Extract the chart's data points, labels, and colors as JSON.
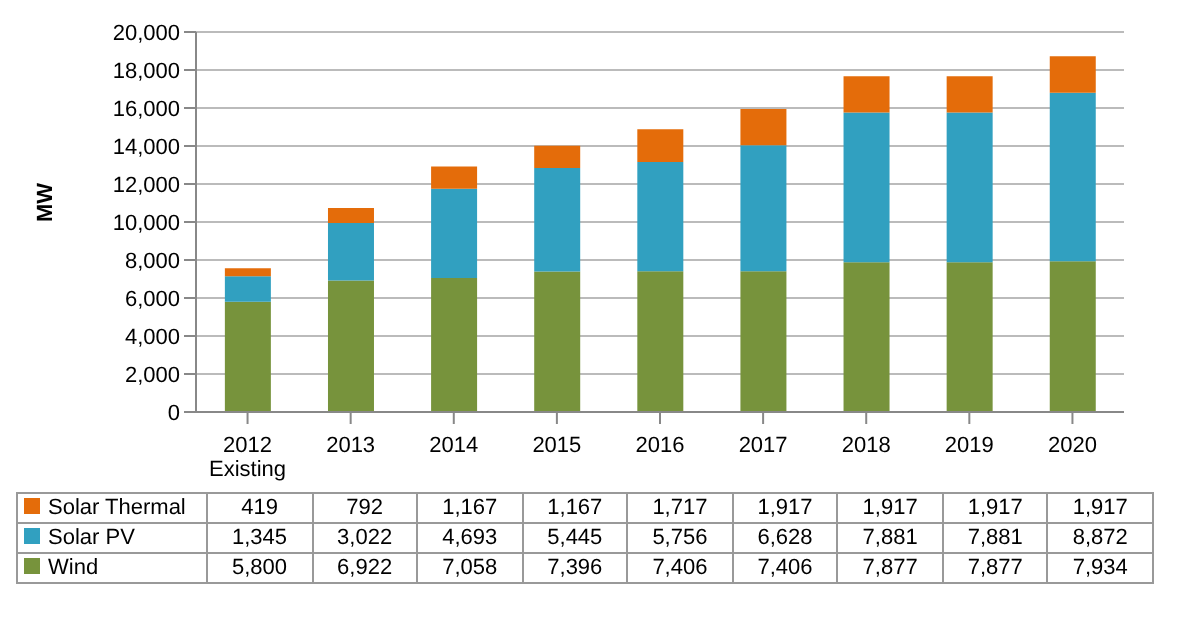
{
  "chart_data": {
    "type": "bar",
    "stacked": true,
    "ylabel": "MW",
    "categories": [
      "2012 Existing",
      "2013",
      "2014",
      "2015",
      "2016",
      "2017",
      "2018",
      "2019",
      "2020"
    ],
    "series": [
      {
        "name": "Wind",
        "color": "#77933c",
        "values": [
          5800,
          6922,
          7058,
          7396,
          7406,
          7406,
          7877,
          7877,
          7934
        ],
        "value_labels": [
          "5,800",
          "6,922",
          "7,058",
          "7,396",
          "7,406",
          "7,406",
          "7,877",
          "7,877",
          "7,934"
        ]
      },
      {
        "name": "Solar PV",
        "color": "#31a0c0",
        "values": [
          1345,
          3022,
          4693,
          5445,
          5756,
          6628,
          7881,
          7881,
          8872
        ],
        "value_labels": [
          "1,345",
          "3,022",
          "4,693",
          "5,445",
          "5,756",
          "6,628",
          "7,881",
          "7,881",
          "8,872"
        ]
      },
      {
        "name": "Solar Thermal",
        "color": "#e46c0a",
        "values": [
          419,
          792,
          1167,
          1167,
          1717,
          1917,
          1917,
          1917,
          1917
        ],
        "value_labels": [
          "419",
          "792",
          "1,167",
          "1,167",
          "1,717",
          "1,917",
          "1,917",
          "1,917",
          "1,917"
        ]
      }
    ],
    "ylim": [
      0,
      20000
    ],
    "yticks": [
      0,
      {
        "value": 2000,
        "label": "2,000"
      },
      {
        "value": 4000,
        "label": "4,000"
      },
      {
        "value": 6000,
        "label": "6,000"
      },
      {
        "value": 8000,
        "label": "8,000"
      },
      {
        "value": 10000,
        "label": "10,000"
      },
      {
        "value": 12000,
        "label": "12,000"
      },
      {
        "value": 14000,
        "label": "14,000"
      },
      {
        "value": 16000,
        "label": "16,000"
      },
      {
        "value": 18000,
        "label": "18,000"
      },
      {
        "value": 20000,
        "label": "20,000"
      }
    ],
    "grid": "y",
    "legend": "bottom left"
  }
}
